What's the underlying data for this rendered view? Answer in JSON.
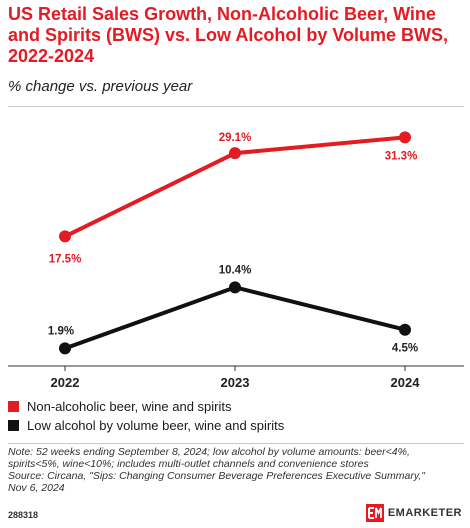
{
  "header": {
    "title": "US Retail Sales Growth, Non-Alcoholic Beer, Wine and Spirits (BWS) vs. Low Alcohol by Volume BWS, 2022-2024",
    "subtitle": "% change vs. previous year"
  },
  "chart_data": {
    "type": "line",
    "x": [
      "2022",
      "2023",
      "2024"
    ],
    "series": [
      {
        "name": "Non-alcoholic beer, wine and spirits",
        "values": [
          17.5,
          29.1,
          31.3
        ],
        "labels": [
          "17.5%",
          "29.1%",
          "31.3%"
        ],
        "color": "#e31b23"
      },
      {
        "name": "Low alcohol by volume beer, wine and spirits",
        "values": [
          1.9,
          10.4,
          4.5
        ],
        "labels": [
          "1.9%",
          "10.4%",
          "4.5%"
        ],
        "color": "#111111"
      }
    ],
    "ylim": [
      0,
      34
    ],
    "grid": false,
    "legend_position": "bottom-left"
  },
  "notes": {
    "lines": [
      "Note: 52 weeks ending September 8, 2024; low alcohol by volume amounts: beer<4%,",
      "spirits<5%, wine<10%; includes multi-outlet channels and convenience stores",
      "Source: Circana, \"Sips: Changing Consumer Beverage Preferences Executive Summary,\"",
      "Nov 6, 2024"
    ]
  },
  "footer": {
    "chart_id": "288318",
    "brand": "EMARKETER",
    "brand_color": "#e31b23"
  }
}
